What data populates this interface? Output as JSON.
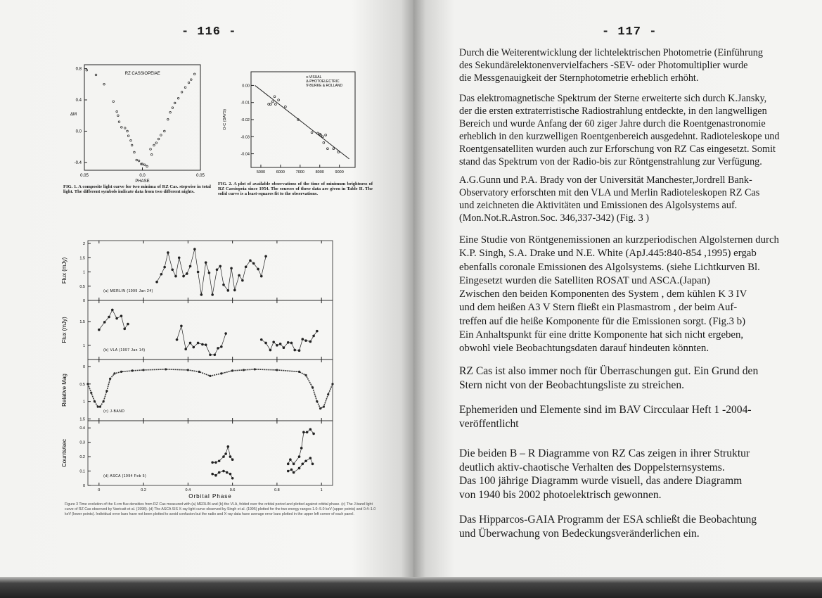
{
  "left_page": {
    "page_number": "- 116 -",
    "figure1": {
      "title": "RZ CASSIOPEIAE",
      "xlabel": "PHASE",
      "ylabel": "ΔM",
      "xlim": [
        -0.05,
        0.05
      ],
      "ylim": [
        -0.5,
        0.85
      ],
      "xticks": [
        "0.05",
        "0.0",
        "0.05"
      ],
      "yticks": [
        "0.8",
        "0.4",
        "0.0",
        "-0.4"
      ],
      "points": [
        [
          -0.048,
          0.78
        ],
        [
          -0.04,
          0.72
        ],
        [
          -0.033,
          0.6
        ],
        [
          -0.025,
          0.38
        ],
        [
          -0.022,
          0.25
        ],
        [
          -0.021,
          0.2
        ],
        [
          -0.02,
          0.12
        ],
        [
          -0.018,
          0.05
        ],
        [
          -0.015,
          0.04
        ],
        [
          -0.013,
          0.0
        ],
        [
          -0.012,
          -0.06
        ],
        [
          -0.01,
          -0.12
        ],
        [
          -0.009,
          -0.18
        ],
        [
          -0.007,
          -0.27
        ],
        [
          -0.005,
          -0.37
        ],
        [
          -0.003,
          -0.38
        ],
        [
          -0.001,
          -0.42
        ],
        [
          0.0,
          -0.42
        ],
        [
          0.002,
          -0.43
        ],
        [
          0.004,
          -0.45
        ],
        [
          0.007,
          -0.23
        ],
        [
          0.008,
          -0.3
        ],
        [
          0.01,
          -0.18
        ],
        [
          0.012,
          -0.15
        ],
        [
          0.014,
          -0.1
        ],
        [
          0.016,
          -0.05
        ],
        [
          0.019,
          0.0
        ],
        [
          0.022,
          0.15
        ],
        [
          0.024,
          0.24
        ],
        [
          0.026,
          0.3
        ],
        [
          0.028,
          0.36
        ],
        [
          0.031,
          0.42
        ],
        [
          0.034,
          0.5
        ],
        [
          0.037,
          0.56
        ],
        [
          0.04,
          0.62
        ],
        [
          0.042,
          0.66
        ],
        [
          0.045,
          0.73
        ]
      ],
      "caption": "FIG. 1. A composite light curve for two minima of RZ Cas. stepwise in total light. The different symbols indicate data from two different nights."
    },
    "figure2": {
      "xlabel": "JULIAN DATE",
      "ylabel": "O-C (DAYS)",
      "xlim": [
        4500,
        9800
      ],
      "ylim": [
        -0.048,
        0.008
      ],
      "xticks": [
        "5000",
        "6000",
        "7000",
        "8000",
        "9000"
      ],
      "yticks": [
        "0.00",
        "-0.01",
        "-0.02",
        "-0.03",
        "-0.04"
      ],
      "legend": [
        "o-VISUAL",
        "Δ-PHOTOELECTRIC",
        "∇-BURKE & ROLLAND"
      ],
      "fit_line": [
        [
          4700,
          0.0
        ],
        [
          9500,
          -0.043
        ]
      ],
      "points": [
        [
          5400,
          -0.011
        ],
        [
          5500,
          -0.011
        ],
        [
          5600,
          -0.0095
        ],
        [
          5700,
          -0.0065
        ],
        [
          5750,
          -0.011
        ],
        [
          5900,
          -0.0085
        ],
        [
          6250,
          -0.0125
        ],
        [
          6900,
          -0.02
        ],
        [
          7600,
          -0.0275
        ],
        [
          7900,
          -0.028
        ],
        [
          8000,
          -0.0285
        ],
        [
          8050,
          -0.029
        ],
        [
          8150,
          -0.03
        ],
        [
          8200,
          -0.0335
        ],
        [
          8300,
          -0.029
        ],
        [
          8400,
          -0.037
        ],
        [
          8700,
          -0.037
        ],
        [
          8950,
          -0.039
        ]
      ],
      "caption": "FIG. 2. A plot of available observations of the time of minimum brightness of RZ Cassiopeia since 1954. The sources of these data are given in Table II. The solid curve is a least-squares fit to the observations."
    },
    "figure3": {
      "xlabel": "Orbital Phase",
      "xlim": [
        -0.05,
        1.05
      ],
      "xticks": [
        "0",
        "0.2",
        "0.4",
        "0.6",
        "0.8",
        "1"
      ],
      "panels": [
        {
          "label": "(a) MERLIN (1999 Jan 24)",
          "ylabel": "Flux (mJy)",
          "ylim": [
            0,
            2.1
          ],
          "yticks": [
            "2",
            "1.5",
            "1",
            "0.5",
            "0"
          ],
          "style": "line",
          "points": [
            [
              0.26,
              0.65
            ],
            [
              0.28,
              0.92
            ],
            [
              0.295,
              1.17
            ],
            [
              0.31,
              1.68
            ],
            [
              0.33,
              1.08
            ],
            [
              0.345,
              0.85
            ],
            [
              0.36,
              1.5
            ],
            [
              0.38,
              0.85
            ],
            [
              0.395,
              0.94
            ],
            [
              0.41,
              1.2
            ],
            [
              0.43,
              1.8
            ],
            [
              0.445,
              1.0
            ],
            [
              0.46,
              0.2
            ],
            [
              0.48,
              1.33
            ],
            [
              0.495,
              0.97
            ],
            [
              0.51,
              0.2
            ],
            [
              0.53,
              1.08
            ],
            [
              0.545,
              1.2
            ],
            [
              0.56,
              0.55
            ],
            [
              0.58,
              0.35
            ],
            [
              0.595,
              1.13
            ],
            [
              0.61,
              0.36
            ],
            [
              0.63,
              0.88
            ],
            [
              0.645,
              0.7
            ],
            [
              0.66,
              1.18
            ],
            [
              0.68,
              1.4
            ],
            [
              0.695,
              1.3
            ],
            [
              0.715,
              1.1
            ],
            [
              0.73,
              0.85
            ],
            [
              0.75,
              1.55
            ]
          ]
        },
        {
          "label": "(b) VLA (1997 Jan 14)",
          "ylabel": "Flux (mJy)",
          "ylim": [
            0.7,
            1.95
          ],
          "yticks": [
            "1.5",
            "1"
          ],
          "style": "line",
          "segments": [
            [
              [
                0.0,
                1.33
              ],
              [
                0.025,
                1.49
              ],
              [
                0.045,
                1.6
              ],
              [
                0.06,
                1.75
              ],
              [
                0.08,
                1.57
              ],
              [
                0.1,
                1.62
              ],
              [
                0.115,
                1.35
              ],
              [
                0.13,
                1.45
              ]
            ],
            [
              [
                0.35,
                1.12
              ],
              [
                0.37,
                1.41
              ],
              [
                0.39,
                0.92
              ],
              [
                0.41,
                1.05
              ],
              [
                0.425,
                0.96
              ],
              [
                0.445,
                1.05
              ],
              [
                0.465,
                1.02
              ],
              [
                0.48,
                1.01
              ],
              [
                0.5,
                0.8
              ],
              [
                0.52,
                0.8
              ],
              [
                0.535,
                0.94
              ],
              [
                0.55,
                0.97
              ],
              [
                0.57,
                1.25
              ]
            ],
            [
              [
                0.73,
                1.12
              ],
              [
                0.75,
                1.05
              ],
              [
                0.77,
                0.9
              ],
              [
                0.785,
                1.07
              ],
              [
                0.8,
                1.0
              ],
              [
                0.815,
                1.03
              ],
              [
                0.83,
                0.95
              ],
              [
                0.85,
                1.06
              ],
              [
                0.865,
                1.05
              ],
              [
                0.88,
                0.9
              ],
              [
                0.9,
                0.89
              ],
              [
                0.915,
                1.13
              ],
              [
                0.93,
                1.1
              ],
              [
                0.95,
                1.08
              ],
              [
                0.965,
                1.2
              ],
              [
                0.98,
                1.3
              ]
            ]
          ]
        },
        {
          "label": "(c) J-BAND",
          "ylabel": "Relative Mag",
          "ylim": [
            1.55,
            -0.2
          ],
          "yticks": [
            "0",
            "0.5",
            "1",
            "1.5"
          ],
          "style": "dots",
          "points": [
            [
              -0.05,
              0.5
            ],
            [
              -0.035,
              0.75
            ],
            [
              -0.02,
              1.0
            ],
            [
              -0.005,
              1.15
            ],
            [
              0.005,
              1.15
            ],
            [
              0.02,
              1.0
            ],
            [
              0.035,
              0.7
            ],
            [
              0.05,
              0.35
            ],
            [
              0.07,
              0.2
            ],
            [
              0.1,
              0.15
            ],
            [
              0.15,
              0.12
            ],
            [
              0.2,
              0.1
            ],
            [
              0.3,
              0.08
            ],
            [
              0.4,
              0.1
            ],
            [
              0.45,
              0.15
            ],
            [
              0.5,
              0.27
            ],
            [
              0.55,
              0.2
            ],
            [
              0.6,
              0.12
            ],
            [
              0.65,
              0.1
            ],
            [
              0.7,
              0.08
            ],
            [
              0.8,
              0.1
            ],
            [
              0.9,
              0.15
            ],
            [
              0.93,
              0.25
            ],
            [
              0.96,
              0.6
            ],
            [
              0.98,
              1.0
            ],
            [
              0.995,
              1.2
            ],
            [
              1.01,
              1.15
            ],
            [
              1.03,
              0.8
            ],
            [
              1.05,
              0.5
            ]
          ]
        },
        {
          "label": "(d) ASCA (1994 Feb 5)",
          "ylabel": "Counts/sec",
          "ylim": [
            0,
            0.45
          ],
          "yticks": [
            "0.4",
            "0.3",
            "0.2",
            "0.1",
            "0"
          ],
          "style": "line",
          "segments": [
            [
              [
                0.51,
                0.16
              ],
              [
                0.525,
                0.16
              ],
              [
                0.54,
                0.17
              ],
              [
                0.56,
                0.2
              ],
              [
                0.57,
                0.22
              ],
              [
                0.58,
                0.27
              ],
              [
                0.59,
                0.2
              ],
              [
                0.6,
                0.18
              ]
            ],
            [
              [
                0.51,
                0.08
              ],
              [
                0.525,
                0.07
              ],
              [
                0.54,
                0.09
              ],
              [
                0.56,
                0.1
              ],
              [
                0.575,
                0.09
              ],
              [
                0.59,
                0.08
              ],
              [
                0.6,
                0.05
              ]
            ],
            [
              [
                0.85,
                0.15
              ],
              [
                0.86,
                0.18
              ],
              [
                0.875,
                0.15
              ],
              [
                0.9,
                0.2
              ],
              [
                0.91,
                0.26
              ],
              [
                0.92,
                0.37
              ],
              [
                0.935,
                0.37
              ],
              [
                0.95,
                0.39
              ],
              [
                0.965,
                0.36
              ]
            ],
            [
              [
                0.85,
                0.1
              ],
              [
                0.865,
                0.11
              ],
              [
                0.875,
                0.09
              ],
              [
                0.9,
                0.12
              ],
              [
                0.915,
                0.15
              ],
              [
                0.93,
                0.17
              ],
              [
                0.95,
                0.19
              ],
              [
                0.96,
                0.15
              ]
            ]
          ]
        }
      ],
      "caption": "Figure 3  Time evolution of the 6-cm flux densities from RZ Cas measured with (a) MERLIN and (b) the VLA, folded over the orbital period and plotted against orbital phase. (c) The J-band light curve of RZ Cas observed by Varricatt et al. (1998). (d) The ASCA SIS X-ray light curve observed by Singh et al. (1995) plotted for the two energy ranges 1.0–5.0 keV (upper points) and 0.4–1.0 keV (lower points). Individual error bars have not been plotted to avoid confusion but the radio and X-ray data have average error bars plotted in the upper left corner of each panel."
    }
  },
  "right_page": {
    "page_number": "- 117 -",
    "paragraphs": [
      "Durch die Weiterentwicklung der lichtelektrischen Photometrie (Einführung\ndes Sekundärelektonenvervielfachers  -SEV- oder Photomultiplier wurde\ndie Messgenauigkeit  der Sternphotometrie erheblich erhöht.",
      "Das elektromagnetische  Spektrum der Sterne  erweiterte sich durch K.Jansky,\nder die ersten extraterristische  Radiostrahlung entdeckte, in den langwelligen\nBereich und wurde Anfang der 60 ziger Jahre durch die Roentgenastronomie\nerheblich in den kurzwelligen Roentgenbereich ausgedehnt. Radioteleskope und\nRoentgensatelliten wurden auch zur Erforschung von RZ Cas eingesetzt. Somit\nstand das Spektrum von der Radio-bis zur Röntgenstrahlung zur Verfügung.",
      "A.G.Gunn  und P.A. Brady von der Universität Manchester,Jordrell Bank-\nObservatory  erforschten mit den VLA und Merlin Radioteleskopen RZ Cas\nund zeichneten die Aktivitäten und Emissionen des Algolsystems auf.\n(Mon.Not.R.Astron.Soc. 346,337-342) (Fig. 3  )",
      "Eine Studie von Röntgenemissionen an kurzperiodischen  Algolsternen durch\nK.P. Singh, S.A. Drake und N.E. White  (ApJ.445:840-854 ,1995) ergab\nebenfalls coronale Emissionen des  Algolsystems. (siehe Lichtkurven Bl.\nEingesetzt wurden die Satelliten ROSAT und ASCA.(Japan)\nZwischen den beiden Komponenten des System , dem kühlen K 3 IV\n und dem heißen A3 V  Stern  fließt ein Plasmastrom , der beim Auf-\ntreffen auf die heiße Komponente für die  Emissionen sorgt.  (Fig.3 b)\nEin Anhaltspunkt für eine dritte Komponente hat sich nicht ergeben,\nobwohl viele Beobachtungsdaten darauf hindeuten könnten.",
      "RZ Cas ist also immer noch für Überraschungen gut. Ein Grund  den\nStern nicht von der Beobachtungsliste zu streichen.",
      "Ephemeriden und Elemente sind im BAV Circculaar   Heft 1 -2004-\nveröffentlicht",
      "Die beiden  B – R  Diagramme von RZ Cas  zeigen in ihrer Struktur\ndeutlich aktiv-chaotische Verhalten  des Doppelsternsystems.\nDas 100 jährige Diagramm  wurde visuell, das andere Diagramm\nvon 1940 bis 2002  photoelektrisch gewonnen.",
      "Das Hipparcos-GAIA Programm der ESA schließt die Beobachtung\nund Überwachung  von Bedeckungsveränderlichen ein."
    ]
  }
}
